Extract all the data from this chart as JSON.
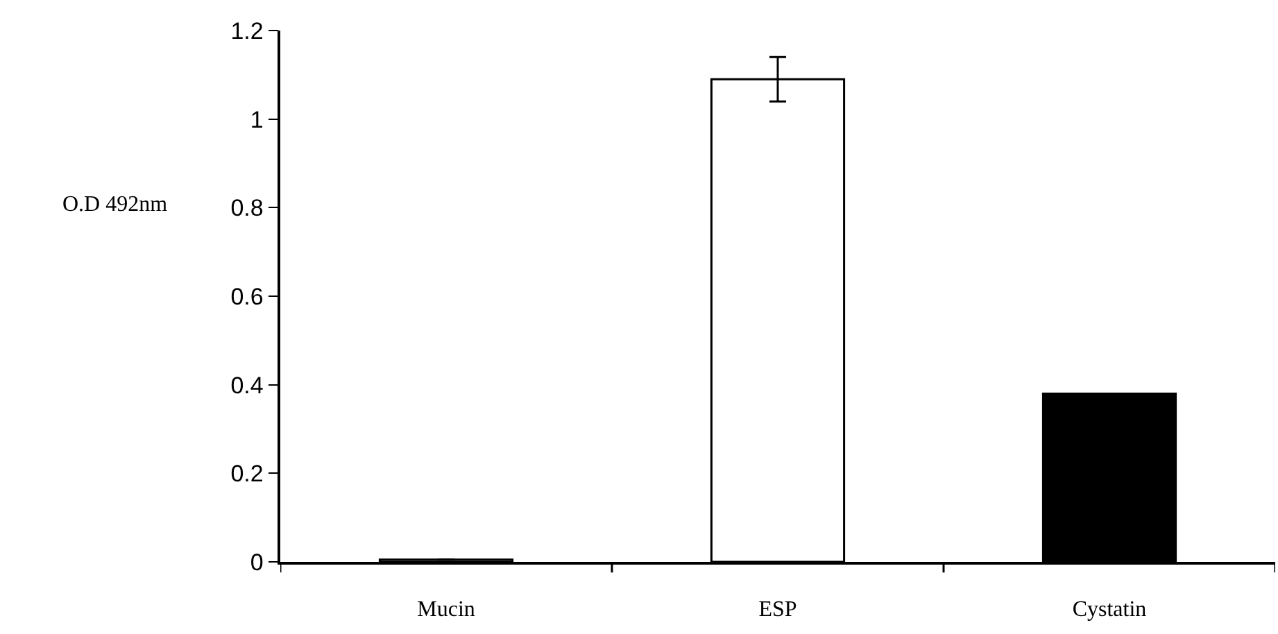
{
  "chart_data": {
    "type": "bar",
    "ylabel": "O.D 492nm",
    "categories": [
      "Mucin",
      "ESP",
      "Cystatin"
    ],
    "values": [
      0.005,
      1.09,
      0.38
    ],
    "colors": [
      "#ffffff",
      "#ffffff",
      "#000000"
    ],
    "errors": [
      null,
      0.05,
      null
    ],
    "ylim": [
      0,
      1.2
    ],
    "yticks": [
      0,
      0.2,
      0.4,
      0.6,
      0.8,
      1,
      1.2
    ],
    "legend": false
  }
}
